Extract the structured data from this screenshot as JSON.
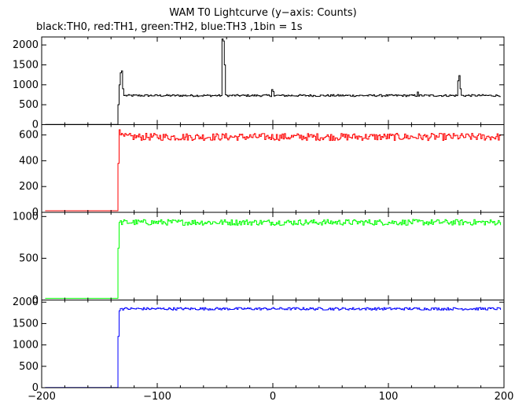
{
  "title": "WAM T0 Lightcurve (y−axis: Counts)",
  "subtitle": "black:TH0, red:TH1, green:TH2, blue:TH3 ,1bin = 1s",
  "chart_data": {
    "type": "line",
    "title": "WAM T0 Lightcurve (y−axis: Counts)",
    "subtitle": "black:TH0, red:TH1, green:TH2, blue:TH3 ,1bin = 1s",
    "xlim": [
      -200,
      200
    ],
    "x_ticks": [
      -200,
      -100,
      0,
      100,
      200
    ],
    "x_tick_labels": [
      "−200",
      "−100",
      "0",
      "100",
      "200"
    ],
    "xlabel": "",
    "ylabel": "",
    "step": 1,
    "panels": [
      {
        "name": "TH0",
        "color": "#000000",
        "ylim": [
          0,
          2200
        ],
        "y_ticks": [
          0,
          500,
          1000,
          1500,
          2000
        ],
        "pre_level": 5,
        "onset_x": -133,
        "rise": [
          [
            -134,
            500
          ],
          [
            -133,
            1000
          ],
          [
            -132,
            1300
          ],
          [
            -131,
            1350
          ],
          [
            -130,
            900
          ],
          [
            -129,
            730
          ]
        ],
        "level": 730,
        "noise": 25,
        "spikes": [
          [
            -44,
            2150
          ],
          [
            -43,
            2100
          ],
          [
            -42,
            1500
          ],
          [
            -1,
            880
          ],
          [
            0,
            830
          ],
          [
            160,
            1100
          ],
          [
            161,
            1230
          ],
          [
            162,
            900
          ],
          [
            125,
            820
          ]
        ]
      },
      {
        "name": "TH1",
        "color": "#ff0000",
        "ylim": [
          0,
          680
        ],
        "y_ticks": [
          0,
          200,
          400,
          600
        ],
        "pre_level": 12,
        "onset_x": -133,
        "rise": [
          [
            -134,
            380
          ],
          [
            -133,
            640
          ],
          [
            -132,
            600
          ]
        ],
        "level": 585,
        "noise": 28,
        "spikes": []
      },
      {
        "name": "TH2",
        "color": "#00ff00",
        "ylim": [
          0,
          1050
        ],
        "y_ticks": [
          0,
          500,
          1000
        ],
        "pre_level": 20,
        "onset_x": -133,
        "rise": [
          [
            -134,
            620
          ],
          [
            -133,
            930
          ],
          [
            -132,
            950
          ]
        ],
        "level": 930,
        "noise": 35,
        "spikes": []
      },
      {
        "name": "TH3",
        "color": "#0000ff",
        "ylim": [
          0,
          2050
        ],
        "y_ticks": [
          0,
          500,
          1000,
          1500,
          2000
        ],
        "pre_level": 5,
        "onset_x": -133,
        "rise": [
          [
            -134,
            1200
          ],
          [
            -133,
            1800
          ],
          [
            -132,
            1850
          ]
        ],
        "level": 1845,
        "noise": 30,
        "spikes": []
      }
    ]
  }
}
